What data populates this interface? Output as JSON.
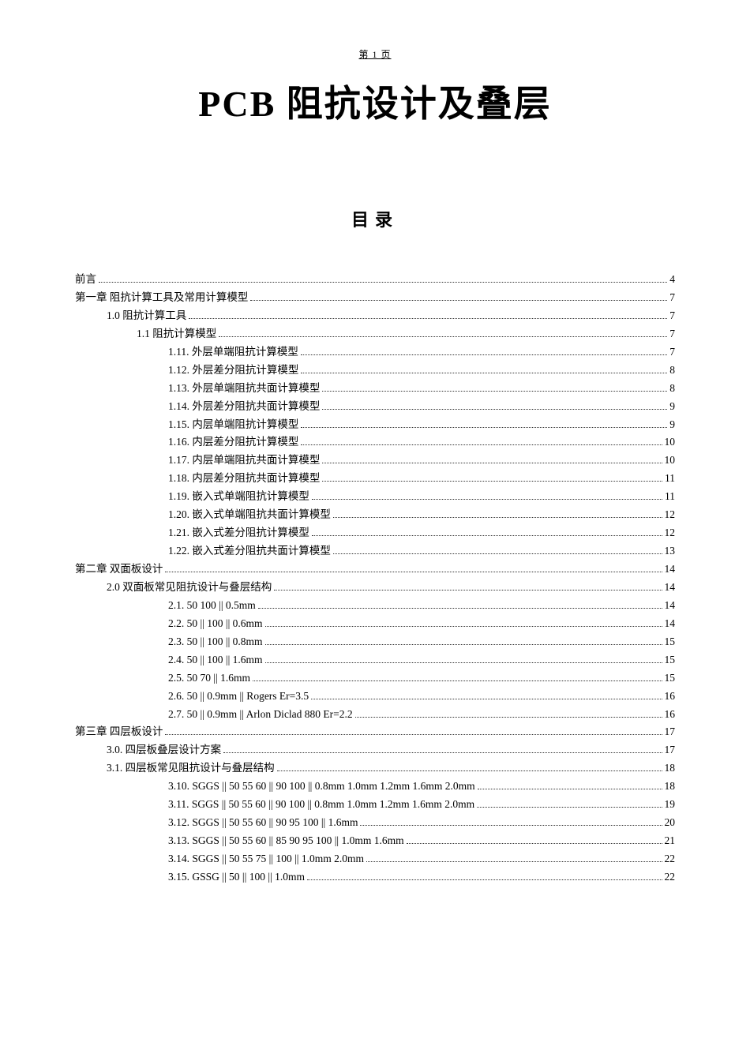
{
  "header": {
    "text": "第 1 页"
  },
  "title": {
    "text": "PCB 阻抗设计及叠层"
  },
  "toc": {
    "heading": "目录",
    "entries": [
      {
        "indent": 0,
        "label": "前言",
        "page": "4"
      },
      {
        "indent": 0,
        "label": "第一章 阻抗计算工具及常用计算模型",
        "page": "7"
      },
      {
        "indent": 1,
        "label": "1.0 阻抗计算工具",
        "page": "7"
      },
      {
        "indent": 2,
        "label": "1.1   阻抗计算模型",
        "page": "7"
      },
      {
        "indent": 3,
        "label": "1.11. 外层单端阻抗计算模型",
        "page": "7"
      },
      {
        "indent": 3,
        "label": "1.12. 外层差分阻抗计算模型",
        "page": "8"
      },
      {
        "indent": 3,
        "label": "1.13. 外层单端阻抗共面计算模型",
        "page": "8"
      },
      {
        "indent": 3,
        "label": "1.14. 外层差分阻抗共面计算模型",
        "page": "9"
      },
      {
        "indent": 3,
        "label": "1.15. 内层单端阻抗计算模型",
        "page": "9"
      },
      {
        "indent": 3,
        "label": "1.16. 内层差分阻抗计算模型",
        "page": "10"
      },
      {
        "indent": 3,
        "label": "1.17. 内层单端阻抗共面计算模型",
        "page": "10"
      },
      {
        "indent": 3,
        "label": "1.18. 内层差分阻抗共面计算模型",
        "page": "11"
      },
      {
        "indent": 3,
        "label": "1.19. 嵌入式单端阻抗计算模型",
        "page": "11"
      },
      {
        "indent": 3,
        "label": "1.20. 嵌入式单端阻抗共面计算模型",
        "page": "12"
      },
      {
        "indent": 3,
        "label": "1.21. 嵌入式差分阻抗计算模型",
        "page": "12"
      },
      {
        "indent": 3,
        "label": "1.22. 嵌入式差分阻抗共面计算模型",
        "page": "13"
      },
      {
        "indent": 0,
        "label": "第二章 双面板设计",
        "page": "14"
      },
      {
        "indent": 1,
        "label": "2.0 双面板常见阻抗设计与叠层结构",
        "page": "14"
      },
      {
        "indent": 3,
        "label": "2.1. 50 100 || 0.5mm",
        "page": "14"
      },
      {
        "indent": 3,
        "label": "2.2. 50 || 100 || 0.6mm ",
        "page": "14"
      },
      {
        "indent": 3,
        "label": "2.3. 50 || 100 || 0.8mm ",
        "page": "15"
      },
      {
        "indent": 3,
        "label": "2.4. 50 || 100 || 1.6mm ",
        "page": "15"
      },
      {
        "indent": 3,
        "label": "2.5. 50 70 || 1.6mm",
        "page": "15"
      },
      {
        "indent": 3,
        "label": "2.6. 50 || 0.9mm || Rogers Er=3.5 ",
        "page": "16"
      },
      {
        "indent": 3,
        "label": "2.7. 50 || 0.9mm || Arlon Diclad 880 Er=2.2",
        "page": "16"
      },
      {
        "indent": 0,
        "label": "第三章 四层板设计",
        "page": "17"
      },
      {
        "indent": 1,
        "label": "3.0. 四层板叠层设计方案",
        "page": "17"
      },
      {
        "indent": 1,
        "label": "3.1. 四层板常见阻抗设计与叠层结构 ",
        "page": "18"
      },
      {
        "indent": 3,
        "label": "3.10. SGGS || 50 55 60 || 90 100 || 0.8mm 1.0mm 1.2mm 1.6mm 2.0mm ",
        "page": "18"
      },
      {
        "indent": 3,
        "label": "3.11. SGGS || 50 55 60 || 90 100 || 0.8mm 1.0mm 1.2mm 1.6mm 2.0mm ",
        "page": "19"
      },
      {
        "indent": 3,
        "label": "3.12. SGGS || 50 55 60 || 90 95 100 || 1.6mm ",
        "page": "20"
      },
      {
        "indent": 3,
        "label": "3.13. SGGS || 50 55 60 || 85 90 95 100 || 1.0mm 1.6mm ",
        "page": "21"
      },
      {
        "indent": 3,
        "label": "3.14. SGGS || 50 55 75 || 100 || 1.0mm 2.0mm ",
        "page": "22"
      },
      {
        "indent": 3,
        "label": "3.15. GSSG || 50 || 100 || 1.0mm ",
        "page": "22"
      }
    ]
  }
}
